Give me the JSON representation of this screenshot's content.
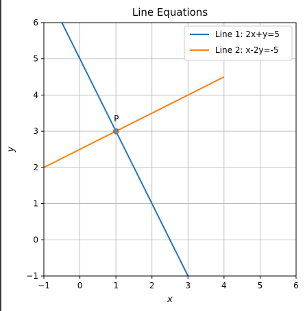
{
  "chart_data": {
    "type": "line",
    "title": "Line Equations",
    "xlabel": "x",
    "ylabel": "y",
    "xlim": [
      -1,
      6
    ],
    "ylim": [
      -1,
      6
    ],
    "xticks": [
      -1,
      0,
      1,
      2,
      3,
      4,
      5,
      6
    ],
    "yticks": [
      -1,
      0,
      1,
      2,
      3,
      4,
      5,
      6
    ],
    "grid": true,
    "legend_position": "top-right",
    "series": [
      {
        "name": "Line 1: 2x+y=5",
        "color": "#1f77b4",
        "x": [
          -0.5,
          3.0
        ],
        "y": [
          6.0,
          -1.0
        ]
      },
      {
        "name": "Line 2: x-2y=-5",
        "color": "#ff7f0e",
        "x": [
          -1.0,
          4.0
        ],
        "y": [
          2.0,
          4.5
        ]
      }
    ],
    "points": [
      {
        "label": "P",
        "x": 1,
        "y": 3,
        "color": "#7f7f7f"
      }
    ]
  }
}
